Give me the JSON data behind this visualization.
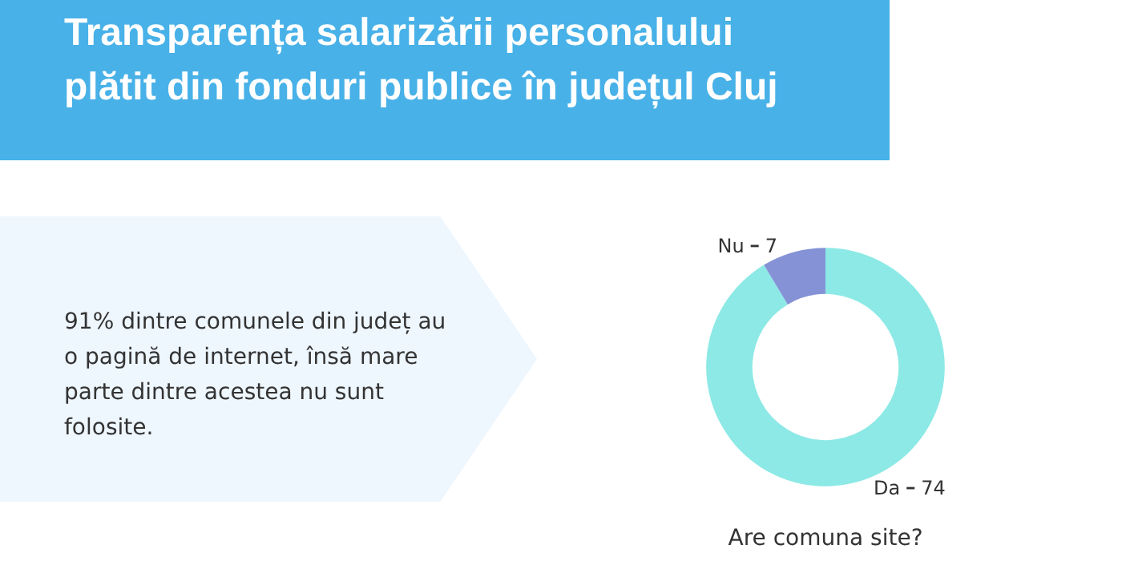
{
  "chart_data": {
    "type": "donut",
    "title": "Transparența salarizării personalului plătit din fonduri publice în județul Cluj",
    "xlabel": "Are comuna site?",
    "annotations": [
      "91% dintre comunele din județ au o pagină de internet, însă mare parte dintre acestea nu sunt folosite."
    ],
    "categories": [
      "Da",
      "Nu"
    ],
    "values": [
      74,
      7
    ],
    "colors": [
      "#8de9e6",
      "#8593d6"
    ],
    "data_labels": true,
    "legend": false
  }
}
